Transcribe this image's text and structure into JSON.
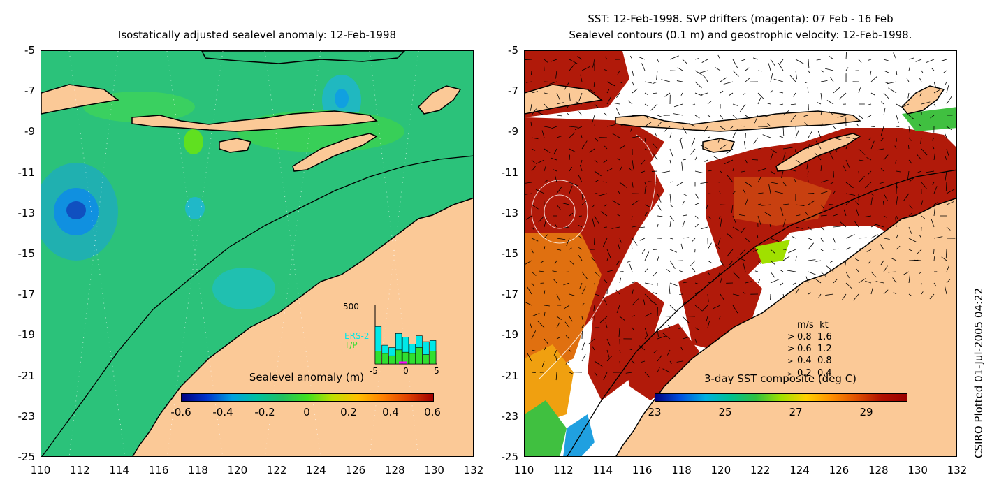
{
  "left_panel": {
    "title": "Isostatically adjusted sealevel anomaly: 12-Feb-1998",
    "colorbar_title": "Sealevel anomaly (m)",
    "colorbar_ticks": [
      "-0.6",
      "-0.4",
      "-0.2",
      "0",
      "0.2",
      "0.4",
      "0.6"
    ],
    "colorbar_colors": [
      "#00007f",
      "#0033cc",
      "#00a0e0",
      "#00c0a0",
      "#20c060",
      "#40e020",
      "#c0e000",
      "#ffc000",
      "#ff8000",
      "#e04000",
      "#a00000"
    ],
    "inset": {
      "ymax_label": "500",
      "series_labels": [
        "ERS-2",
        "T/P"
      ],
      "series_colors": [
        "#00e8e8",
        "#30e030"
      ],
      "x_ticks": [
        "-5",
        "0",
        "5"
      ],
      "ers2_counts": [
        320,
        160,
        140,
        260,
        230,
        170,
        240,
        190,
        200
      ],
      "tp_counts": [
        110,
        90,
        70,
        120,
        100,
        90,
        140,
        80,
        110
      ]
    }
  },
  "right_panel": {
    "title_line1": "SST: 12-Feb-1998. SVP drifters (magenta): 07 Feb - 16 Feb",
    "title_line2": "Sealevel contours (0.1 m) and geostrophic velocity: 12-Feb-1998.",
    "colorbar_title": "3-day SST composite (deg C)",
    "colorbar_ticks": [
      "23",
      "25",
      "27",
      "29"
    ],
    "colorbar_colors": [
      "#00007f",
      "#0050e0",
      "#00b0e0",
      "#00c090",
      "#30c040",
      "#a0e000",
      "#ffd000",
      "#ff9000",
      "#e05000",
      "#b01000",
      "#9a0000"
    ],
    "legend": {
      "header": "m/s  kt",
      "rows": [
        [
          "0.8",
          "1.6"
        ],
        [
          "0.6",
          "1.2"
        ],
        [
          "0.4",
          "0.8"
        ],
        [
          "0.2",
          "0.4"
        ]
      ]
    }
  },
  "axes": {
    "y_ticks": [
      "-5",
      "-7",
      "-9",
      "-11",
      "-13",
      "-15",
      "-17",
      "-19",
      "-21",
      "-23",
      "-25"
    ],
    "x_ticks": [
      "110",
      "112",
      "114",
      "116",
      "118",
      "120",
      "122",
      "124",
      "126",
      "128",
      "130",
      "132"
    ]
  },
  "colors": {
    "land": "#fbc997",
    "ocean_left": "#2bc27a",
    "sst_warm": "#b11a0a",
    "sst_orange": "#e07010"
  },
  "credit": "CSIRO Plotted 01-Jul-2005 04:22"
}
